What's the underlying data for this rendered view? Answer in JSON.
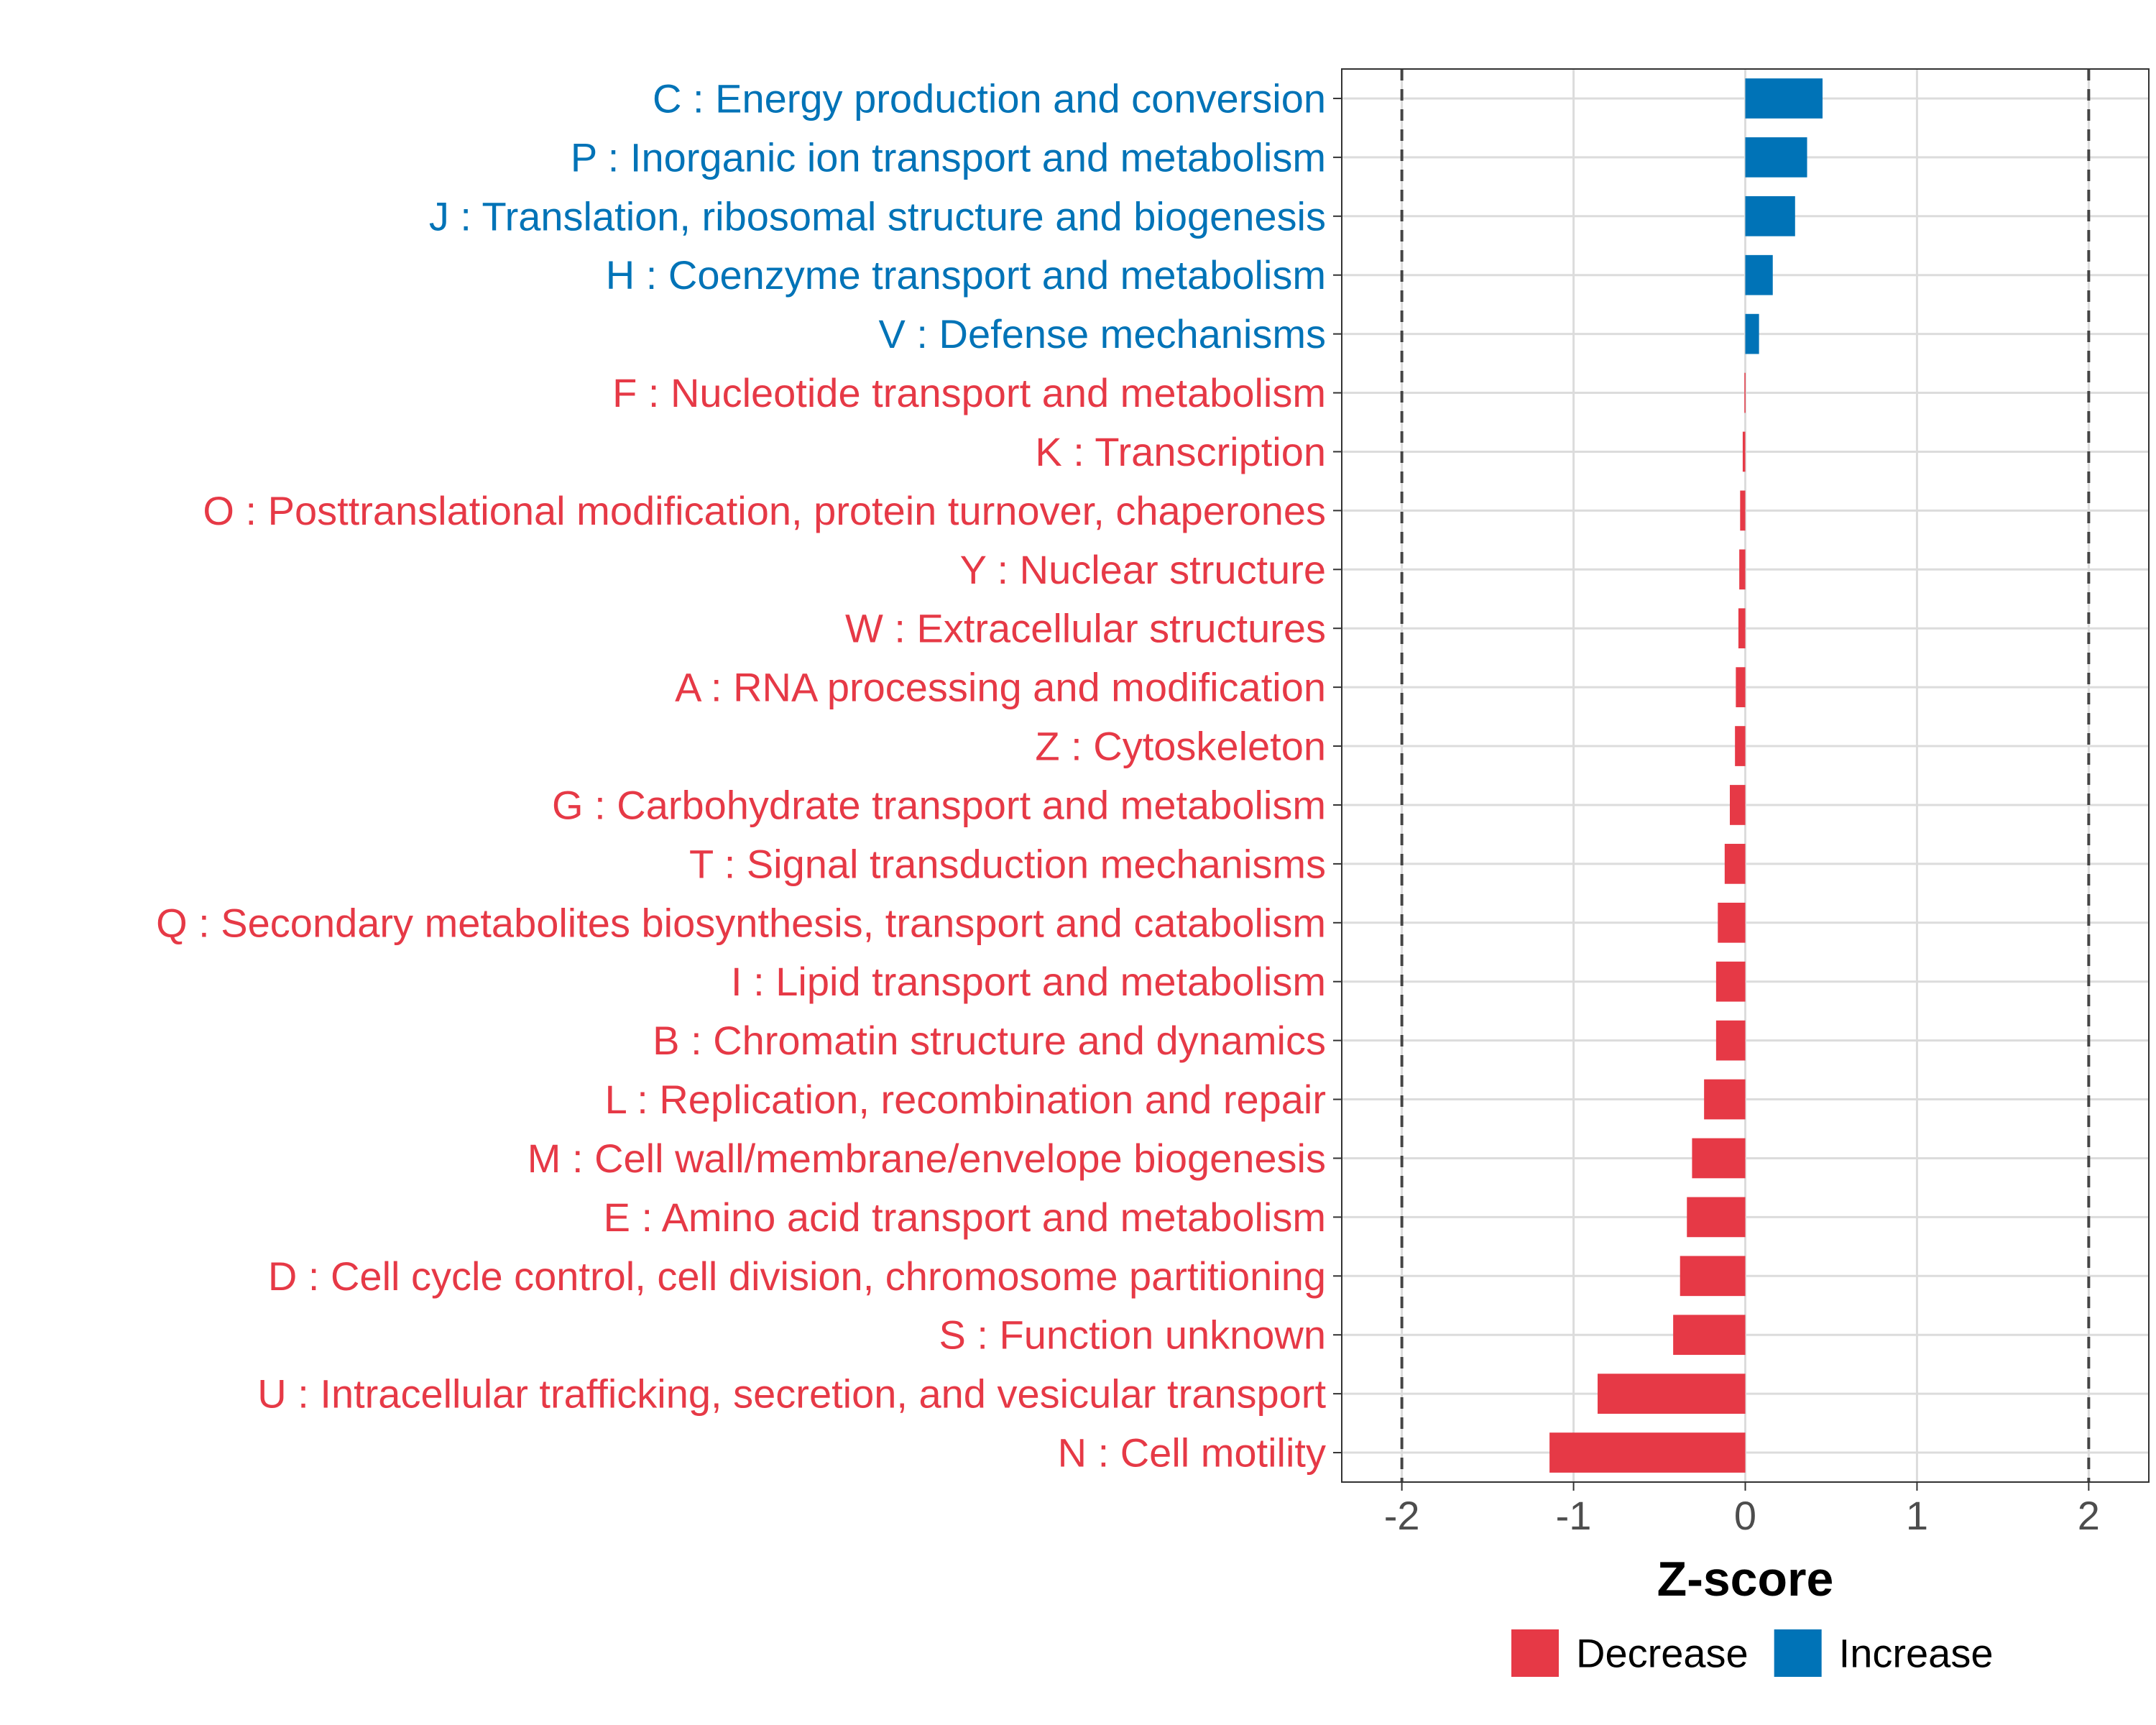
{
  "chart_data": {
    "type": "bar",
    "orientation": "horizontal",
    "categories": [
      "C : Energy production and conversion",
      "P : Inorganic ion transport and metabolism",
      "J : Translation, ribosomal structure and biogenesis",
      "H : Coenzyme transport and metabolism",
      "V : Defense mechanisms",
      "F : Nucleotide transport and metabolism",
      "K : Transcription",
      "O : Posttranslational modification, protein turnover, chaperones",
      "Y : Nuclear structure",
      "W : Extracellular structures",
      "A : RNA processing and modification",
      "Z : Cytoskeleton",
      "G : Carbohydrate transport and metabolism",
      "T : Signal transduction mechanisms",
      "Q : Secondary metabolites biosynthesis, transport and catabolism",
      "I : Lipid transport and metabolism",
      "B : Chromatin structure and dynamics",
      "L : Replication, recombination and repair",
      "M : Cell wall/membrane/envelope biogenesis",
      "E : Amino acid transport and metabolism",
      "D : Cell cycle control, cell division, chromosome partitioning",
      "S : Function unknown",
      "U : Intracellular trafficking, secretion, and vesicular transport",
      "N : Cell motility"
    ],
    "values": [
      0.45,
      0.36,
      0.29,
      0.16,
      0.08,
      -0.005,
      -0.015,
      -0.03,
      -0.035,
      -0.04,
      -0.055,
      -0.06,
      -0.09,
      -0.12,
      -0.16,
      -0.17,
      -0.17,
      -0.24,
      -0.31,
      -0.34,
      -0.38,
      -0.42,
      -0.86,
      -1.14
    ],
    "direction": [
      "Increase",
      "Increase",
      "Increase",
      "Increase",
      "Increase",
      "Decrease",
      "Decrease",
      "Decrease",
      "Decrease",
      "Decrease",
      "Decrease",
      "Decrease",
      "Decrease",
      "Decrease",
      "Decrease",
      "Decrease",
      "Decrease",
      "Decrease",
      "Decrease",
      "Decrease",
      "Decrease",
      "Decrease",
      "Decrease",
      "Decrease"
    ],
    "xlabel": "Z-score",
    "ylabel": "",
    "xlim": [
      -2.35,
      2.35
    ],
    "xticks": [
      -2,
      -1,
      0,
      1,
      2
    ],
    "xtick_labels": [
      "-2",
      "-1",
      "0",
      "1",
      "2"
    ],
    "reference_lines": [
      -2,
      2
    ],
    "grid": true,
    "legend": {
      "placement": "bottom",
      "entries": [
        {
          "name": "Decrease",
          "color": "#e63946"
        },
        {
          "name": "Increase",
          "color": "#0073b7"
        }
      ]
    },
    "colors": {
      "Decrease": "#e63946",
      "Increase": "#0073b7"
    }
  }
}
